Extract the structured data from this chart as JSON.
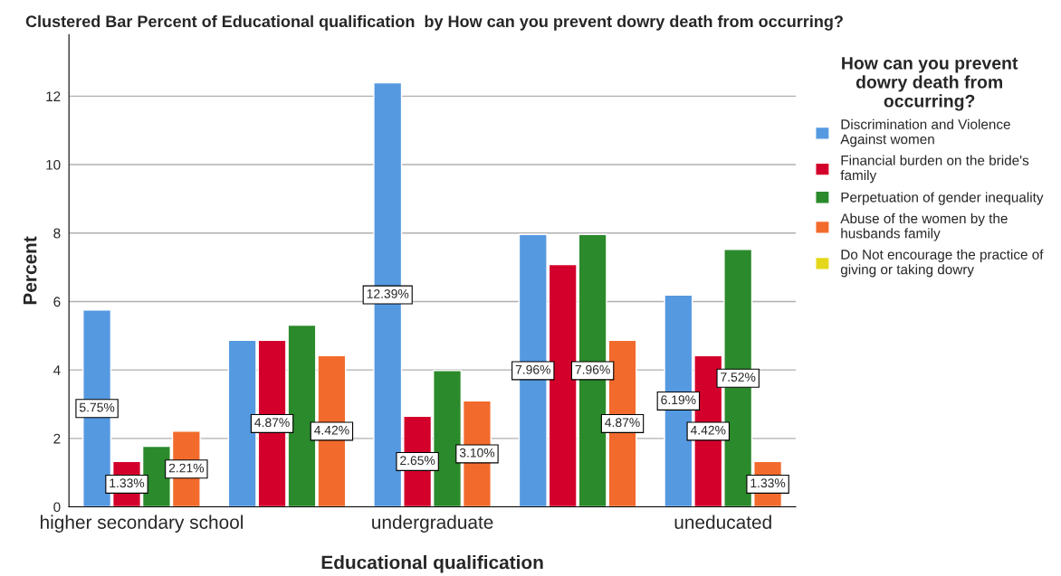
{
  "chart_data": {
    "type": "bar",
    "title": "Clustered Bar Percent of Educational qualification  by How can you prevent dowry death from occurring?",
    "xlabel": "Educational qualification",
    "ylabel": "Percent",
    "legend_title": "How can you prevent dowry death from occurring?",
    "categories": [
      "higher secondary school",
      null,
      "undergraduate",
      null,
      "uneducated"
    ],
    "series": [
      {
        "name": "Discrimination and Violence Against women",
        "color": "#5599e0",
        "values": [
          5.75,
          4.87,
          12.39,
          7.96,
          6.19
        ],
        "value_labels": [
          "5.75%",
          null,
          "12.39%",
          "7.96%",
          "6.19%"
        ]
      },
      {
        "name": "Financial burden on the bride's family",
        "color": "#d4002c",
        "values": [
          1.33,
          4.87,
          2.65,
          7.08,
          4.42
        ],
        "value_labels": [
          "1.33%",
          "4.87%",
          "2.65%",
          null,
          "4.42%"
        ]
      },
      {
        "name": "Perpetuation of gender inequality",
        "color": "#2b8a2b",
        "values": [
          1.77,
          5.31,
          3.98,
          7.96,
          7.52
        ],
        "value_labels": [
          null,
          null,
          null,
          "7.96%",
          "7.52%"
        ]
      },
      {
        "name": "Abuse of the women by the husbands family",
        "color": "#f26b2d",
        "values": [
          2.21,
          4.42,
          3.1,
          4.87,
          1.33
        ],
        "value_labels": [
          "2.21%",
          "4.42%",
          "3.10%",
          "4.87%",
          "1.33%"
        ]
      },
      {
        "name": "Do Not encourage the practice of giving or taking dowry",
        "color": "#e5d81a",
        "values": [
          null,
          null,
          null,
          null,
          null
        ]
      }
    ],
    "ylim": [
      0,
      13.8
    ],
    "yticks": [
      0,
      2,
      4,
      6,
      8,
      10,
      12
    ],
    "grid": "y",
    "legend": "right"
  }
}
